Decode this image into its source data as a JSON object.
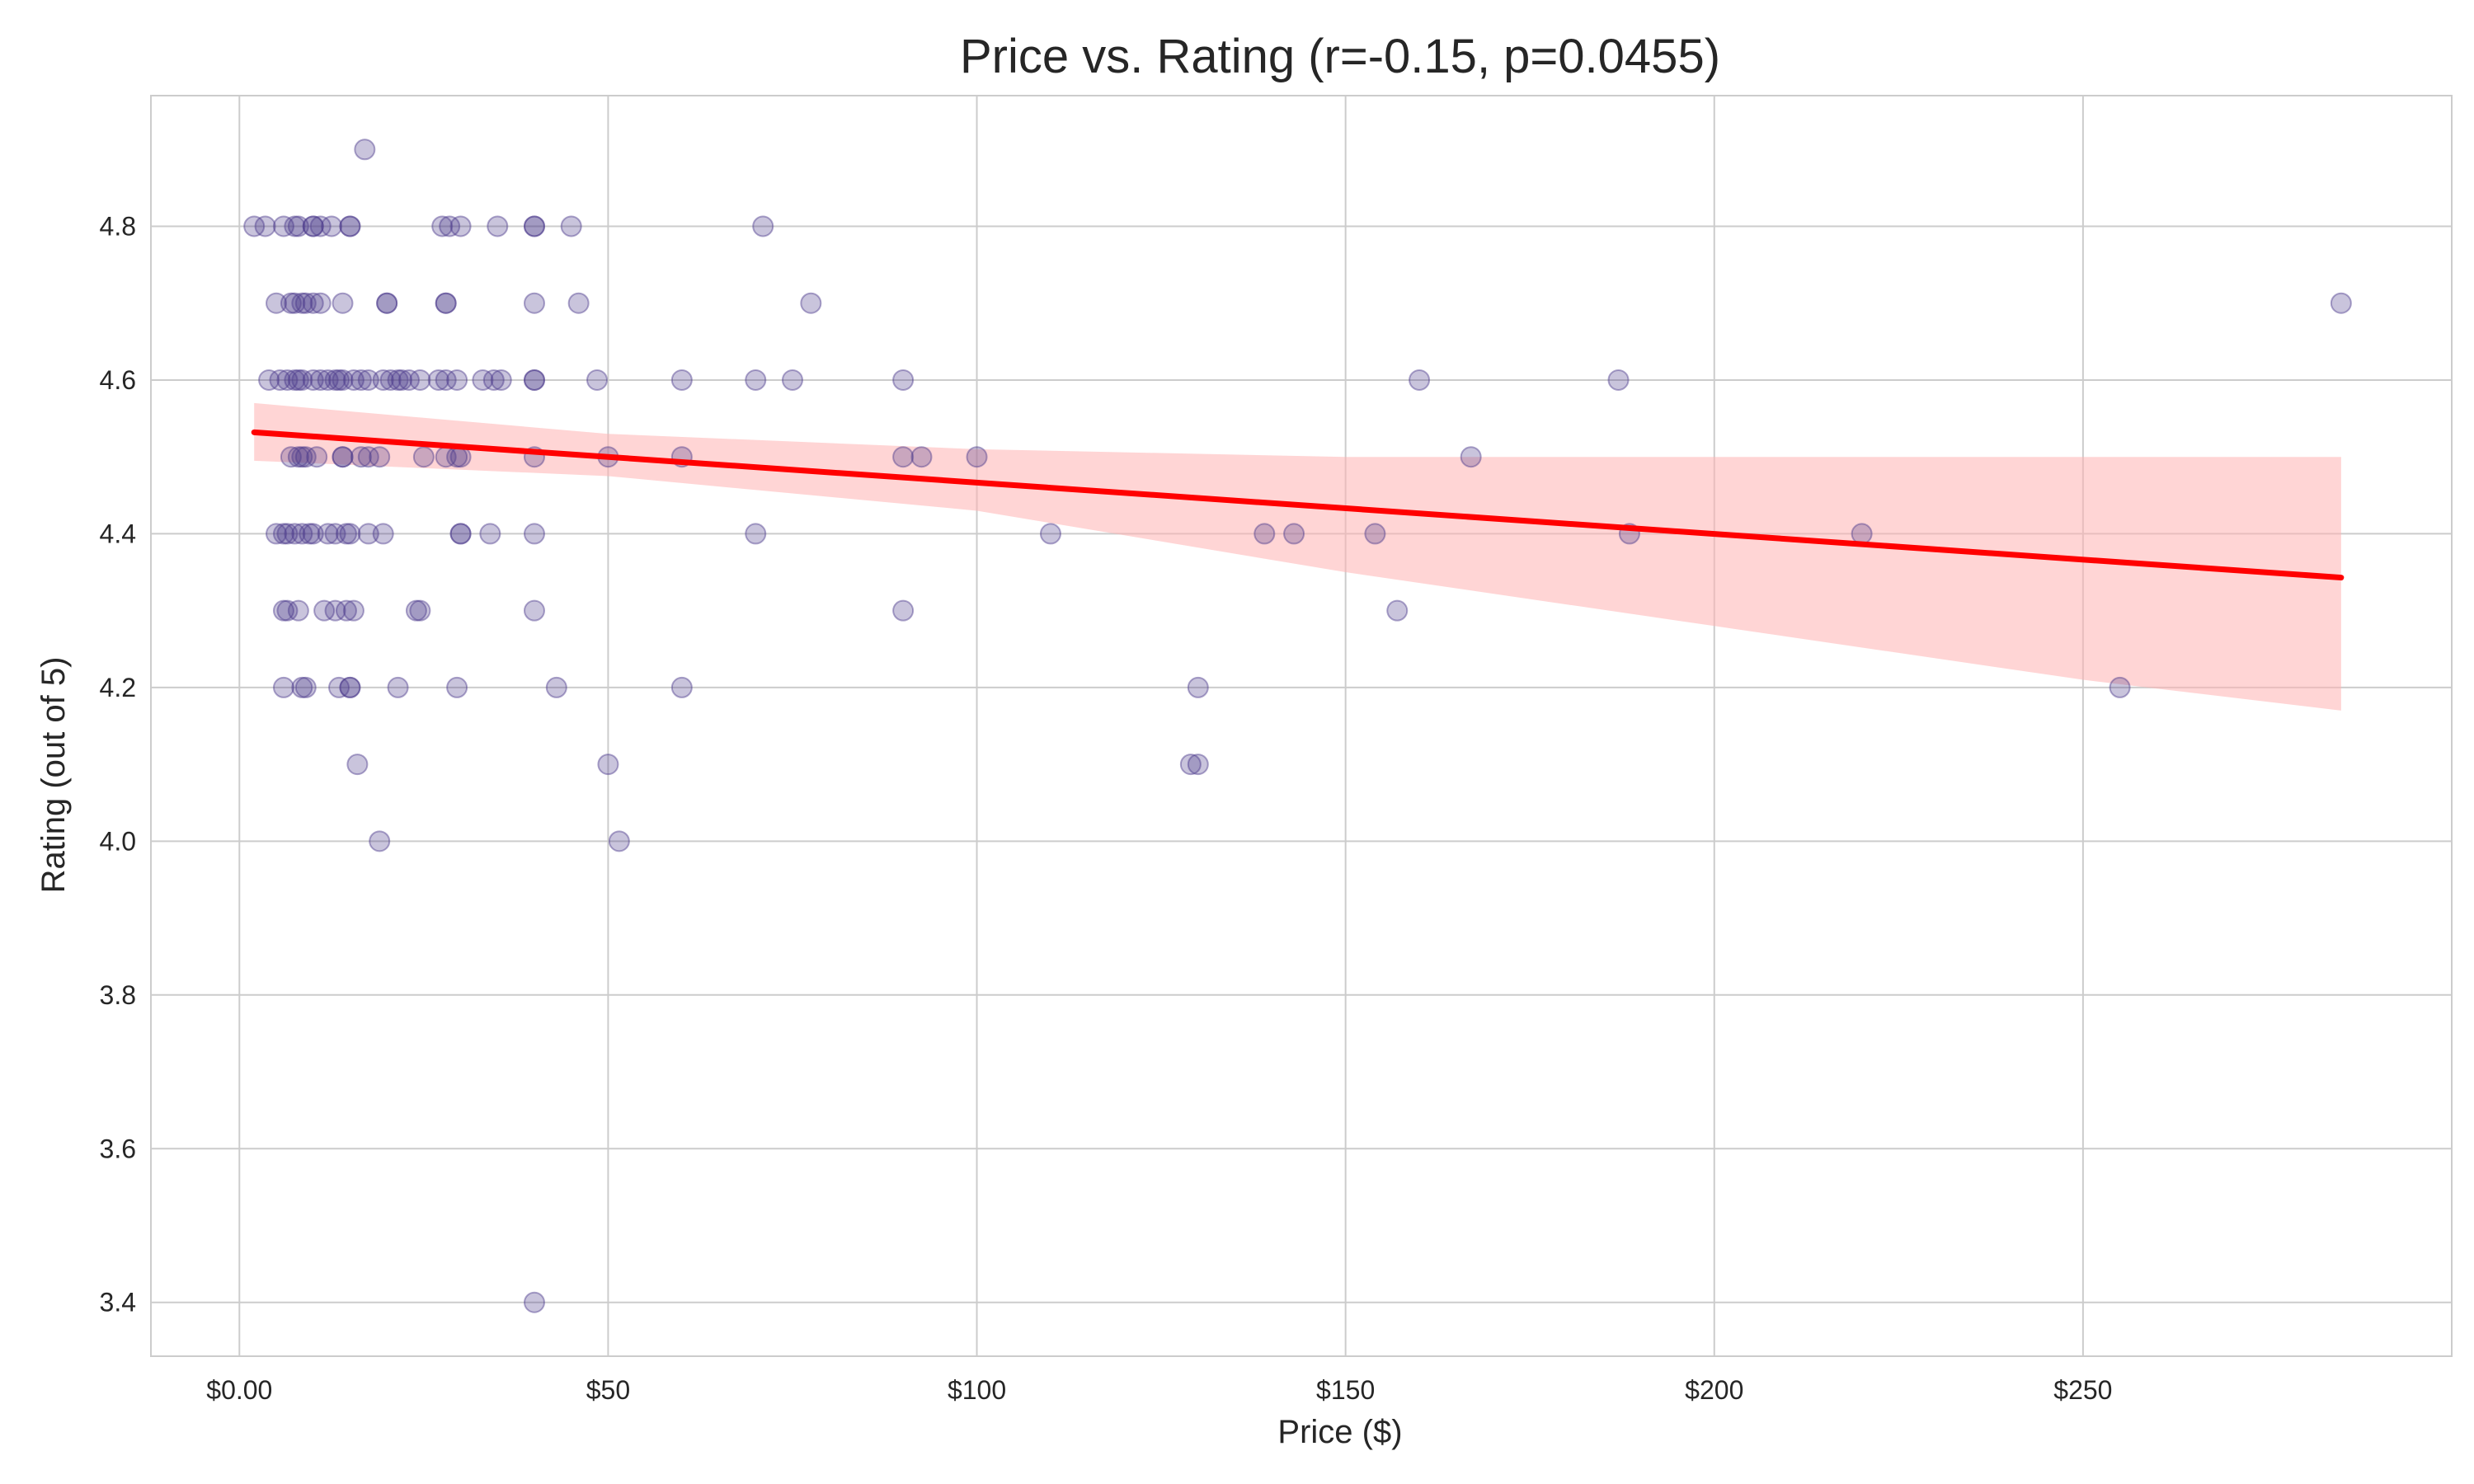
{
  "chart_data": {
    "type": "scatter",
    "title": "Price vs. Rating (r=-0.15, p=0.0455)",
    "xlabel": "Price ($)",
    "ylabel": "Rating (out of 5)",
    "xlim": [
      -12,
      300
    ],
    "ylim": [
      3.33,
      4.97
    ],
    "x_ticks": [
      0,
      50,
      100,
      150,
      200,
      250
    ],
    "x_tick_labels": [
      "$0.00",
      "$50",
      "$100",
      "$150",
      "$200",
      "$250"
    ],
    "y_ticks": [
      3.4,
      3.6,
      3.8,
      4.0,
      4.2,
      4.4,
      4.6,
      4.8
    ],
    "y_tick_labels": [
      "3.4",
      "3.6",
      "3.8",
      "4.0",
      "4.2",
      "4.4",
      "4.6",
      "4.8"
    ],
    "grid": true,
    "point_color": "#4b3a8c",
    "line_color": "#ff0000",
    "band_color": "#ffb3b3",
    "points": [
      {
        "x": 2,
        "y": 4.8
      },
      {
        "x": 3.5,
        "y": 4.8
      },
      {
        "x": 6,
        "y": 4.8
      },
      {
        "x": 7.5,
        "y": 4.8
      },
      {
        "x": 8,
        "y": 4.8
      },
      {
        "x": 10,
        "y": 4.8
      },
      {
        "x": 10,
        "y": 4.8
      },
      {
        "x": 11,
        "y": 4.8
      },
      {
        "x": 12.5,
        "y": 4.8
      },
      {
        "x": 15,
        "y": 4.8
      },
      {
        "x": 15,
        "y": 4.8
      },
      {
        "x": 27.5,
        "y": 4.8
      },
      {
        "x": 28.5,
        "y": 4.8
      },
      {
        "x": 30,
        "y": 4.8
      },
      {
        "x": 35,
        "y": 4.8
      },
      {
        "x": 40,
        "y": 4.8
      },
      {
        "x": 40,
        "y": 4.8
      },
      {
        "x": 45,
        "y": 4.8
      },
      {
        "x": 71,
        "y": 4.8
      },
      {
        "x": 17,
        "y": 4.9
      },
      {
        "x": 5,
        "y": 4.7
      },
      {
        "x": 7,
        "y": 4.7
      },
      {
        "x": 7.5,
        "y": 4.7
      },
      {
        "x": 8.5,
        "y": 4.7
      },
      {
        "x": 9,
        "y": 4.7
      },
      {
        "x": 10,
        "y": 4.7
      },
      {
        "x": 11,
        "y": 4.7
      },
      {
        "x": 14,
        "y": 4.7
      },
      {
        "x": 20,
        "y": 4.7
      },
      {
        "x": 20,
        "y": 4.7
      },
      {
        "x": 28,
        "y": 4.7
      },
      {
        "x": 28,
        "y": 4.7
      },
      {
        "x": 40,
        "y": 4.7
      },
      {
        "x": 46,
        "y": 4.7
      },
      {
        "x": 77.5,
        "y": 4.7
      },
      {
        "x": 285,
        "y": 4.7
      },
      {
        "x": 4,
        "y": 4.6
      },
      {
        "x": 5.5,
        "y": 4.6
      },
      {
        "x": 6.5,
        "y": 4.6
      },
      {
        "x": 7.5,
        "y": 4.6
      },
      {
        "x": 8,
        "y": 4.6
      },
      {
        "x": 8.5,
        "y": 4.6
      },
      {
        "x": 10,
        "y": 4.6
      },
      {
        "x": 11,
        "y": 4.6
      },
      {
        "x": 12,
        "y": 4.6
      },
      {
        "x": 13,
        "y": 4.6
      },
      {
        "x": 13.5,
        "y": 4.6
      },
      {
        "x": 14,
        "y": 4.6
      },
      {
        "x": 15.5,
        "y": 4.6
      },
      {
        "x": 16.5,
        "y": 4.6
      },
      {
        "x": 17.5,
        "y": 4.6
      },
      {
        "x": 19.5,
        "y": 4.6
      },
      {
        "x": 20.5,
        "y": 4.6
      },
      {
        "x": 21.5,
        "y": 4.6
      },
      {
        "x": 22,
        "y": 4.6
      },
      {
        "x": 23,
        "y": 4.6
      },
      {
        "x": 24.5,
        "y": 4.6
      },
      {
        "x": 27,
        "y": 4.6
      },
      {
        "x": 28,
        "y": 4.6
      },
      {
        "x": 29.5,
        "y": 4.6
      },
      {
        "x": 33,
        "y": 4.6
      },
      {
        "x": 34.5,
        "y": 4.6
      },
      {
        "x": 35.5,
        "y": 4.6
      },
      {
        "x": 40,
        "y": 4.6
      },
      {
        "x": 40,
        "y": 4.6
      },
      {
        "x": 48.5,
        "y": 4.6
      },
      {
        "x": 60,
        "y": 4.6
      },
      {
        "x": 70,
        "y": 4.6
      },
      {
        "x": 75,
        "y": 4.6
      },
      {
        "x": 90,
        "y": 4.6
      },
      {
        "x": 160,
        "y": 4.6
      },
      {
        "x": 187,
        "y": 4.6
      },
      {
        "x": 7,
        "y": 4.5
      },
      {
        "x": 8,
        "y": 4.5
      },
      {
        "x": 8.5,
        "y": 4.5
      },
      {
        "x": 9,
        "y": 4.5
      },
      {
        "x": 10.5,
        "y": 4.5
      },
      {
        "x": 14,
        "y": 4.5
      },
      {
        "x": 14,
        "y": 4.5
      },
      {
        "x": 16.5,
        "y": 4.5
      },
      {
        "x": 17.5,
        "y": 4.5
      },
      {
        "x": 19,
        "y": 4.5
      },
      {
        "x": 25,
        "y": 4.5
      },
      {
        "x": 28,
        "y": 4.5
      },
      {
        "x": 29.5,
        "y": 4.5
      },
      {
        "x": 30,
        "y": 4.5
      },
      {
        "x": 40,
        "y": 4.5
      },
      {
        "x": 50,
        "y": 4.5
      },
      {
        "x": 60,
        "y": 4.5
      },
      {
        "x": 90,
        "y": 4.5
      },
      {
        "x": 92.5,
        "y": 4.5
      },
      {
        "x": 100,
        "y": 4.5
      },
      {
        "x": 167,
        "y": 4.5
      },
      {
        "x": 5,
        "y": 4.4
      },
      {
        "x": 6,
        "y": 4.4
      },
      {
        "x": 6.5,
        "y": 4.4
      },
      {
        "x": 7.5,
        "y": 4.4
      },
      {
        "x": 8.5,
        "y": 4.4
      },
      {
        "x": 9.5,
        "y": 4.4
      },
      {
        "x": 10,
        "y": 4.4
      },
      {
        "x": 12,
        "y": 4.4
      },
      {
        "x": 13,
        "y": 4.4
      },
      {
        "x": 14.5,
        "y": 4.4
      },
      {
        "x": 15,
        "y": 4.4
      },
      {
        "x": 17.5,
        "y": 4.4
      },
      {
        "x": 19.5,
        "y": 4.4
      },
      {
        "x": 30,
        "y": 4.4
      },
      {
        "x": 30,
        "y": 4.4
      },
      {
        "x": 34,
        "y": 4.4
      },
      {
        "x": 40,
        "y": 4.4
      },
      {
        "x": 70,
        "y": 4.4
      },
      {
        "x": 110,
        "y": 4.4
      },
      {
        "x": 139,
        "y": 4.4
      },
      {
        "x": 143,
        "y": 4.4
      },
      {
        "x": 154,
        "y": 4.4
      },
      {
        "x": 188.5,
        "y": 4.4
      },
      {
        "x": 220,
        "y": 4.4
      },
      {
        "x": 6,
        "y": 4.3
      },
      {
        "x": 6.5,
        "y": 4.3
      },
      {
        "x": 8,
        "y": 4.3
      },
      {
        "x": 11.5,
        "y": 4.3
      },
      {
        "x": 13,
        "y": 4.3
      },
      {
        "x": 14.5,
        "y": 4.3
      },
      {
        "x": 15.5,
        "y": 4.3
      },
      {
        "x": 24,
        "y": 4.3
      },
      {
        "x": 24.5,
        "y": 4.3
      },
      {
        "x": 40,
        "y": 4.3
      },
      {
        "x": 90,
        "y": 4.3
      },
      {
        "x": 157,
        "y": 4.3
      },
      {
        "x": 6,
        "y": 4.2
      },
      {
        "x": 8.5,
        "y": 4.2
      },
      {
        "x": 9,
        "y": 4.2
      },
      {
        "x": 13.5,
        "y": 4.2
      },
      {
        "x": 15,
        "y": 4.2
      },
      {
        "x": 15,
        "y": 4.2
      },
      {
        "x": 21.5,
        "y": 4.2
      },
      {
        "x": 29.5,
        "y": 4.2
      },
      {
        "x": 43,
        "y": 4.2
      },
      {
        "x": 60,
        "y": 4.2
      },
      {
        "x": 130,
        "y": 4.2
      },
      {
        "x": 255,
        "y": 4.2
      },
      {
        "x": 16,
        "y": 4.1
      },
      {
        "x": 50,
        "y": 4.1
      },
      {
        "x": 129,
        "y": 4.1
      },
      {
        "x": 130,
        "y": 4.1
      },
      {
        "x": 19,
        "y": 4.0
      },
      {
        "x": 51.5,
        "y": 4.0
      },
      {
        "x": 40,
        "y": 3.4
      }
    ],
    "regression": {
      "x": [
        2,
        285
      ],
      "y": [
        4.532,
        4.343
      ]
    },
    "confidence_band": {
      "x": [
        2,
        50,
        100,
        150,
        200,
        250,
        285
      ],
      "upper": [
        4.57,
        4.53,
        4.51,
        4.5,
        4.5,
        4.5,
        4.5
      ],
      "lower": [
        4.495,
        4.475,
        4.43,
        4.35,
        4.28,
        4.21,
        4.17
      ]
    }
  }
}
